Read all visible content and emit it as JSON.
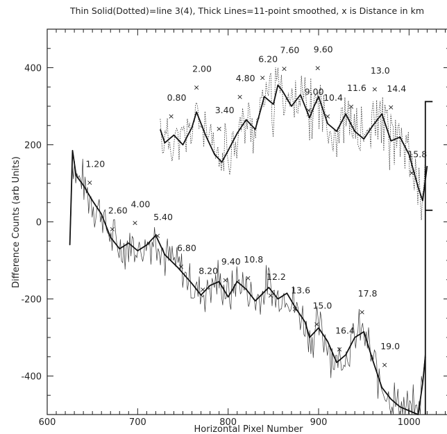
{
  "chart_data": {
    "type": "line",
    "title": "Thin Solid(Dotted)=line 3(4), Thick Lines=11-point smoothed, x is Distance in km",
    "xlabel": "Horizontal Pixel Number",
    "ylabel": "Difference Counts (arb Units)",
    "xlim": [
      600,
      1045
    ],
    "ylim": [
      -500,
      500
    ],
    "xticks": [
      600,
      700,
      800,
      900,
      1000
    ],
    "yticks": [
      -400,
      -200,
      0,
      200,
      400
    ],
    "series": [
      {
        "style": "dotted-thin-and-thick-smoothed",
        "smoothed": [
          [
            725,
            240
          ],
          [
            730,
            205
          ],
          [
            740,
            225
          ],
          [
            750,
            200
          ],
          [
            760,
            245
          ],
          [
            765,
            285
          ],
          [
            775,
            225
          ],
          [
            785,
            175
          ],
          [
            793,
            155
          ],
          [
            800,
            185
          ],
          [
            810,
            230
          ],
          [
            820,
            265
          ],
          [
            830,
            240
          ],
          [
            840,
            325
          ],
          [
            850,
            305
          ],
          [
            855,
            355
          ],
          [
            860,
            340
          ],
          [
            870,
            300
          ],
          [
            880,
            330
          ],
          [
            890,
            270
          ],
          [
            895,
            300
          ],
          [
            900,
            325
          ],
          [
            910,
            255
          ],
          [
            920,
            235
          ],
          [
            930,
            280
          ],
          [
            940,
            235
          ],
          [
            950,
            215
          ],
          [
            960,
            250
          ],
          [
            970,
            280
          ],
          [
            980,
            210
          ],
          [
            990,
            220
          ],
          [
            1000,
            175
          ],
          [
            1010,
            90
          ],
          [
            1015,
            55
          ],
          [
            1020,
            145
          ]
        ]
      },
      {
        "style": "solid-thin-and-thick-smoothed",
        "smoothed": [
          [
            625,
            -60
          ],
          [
            628,
            185
          ],
          [
            632,
            120
          ],
          [
            640,
            95
          ],
          [
            650,
            55
          ],
          [
            660,
            20
          ],
          [
            670,
            -40
          ],
          [
            680,
            -70
          ],
          [
            690,
            -55
          ],
          [
            700,
            -75
          ],
          [
            710,
            -60
          ],
          [
            720,
            -35
          ],
          [
            730,
            -85
          ],
          [
            745,
            -120
          ],
          [
            760,
            -160
          ],
          [
            770,
            -190
          ],
          [
            780,
            -165
          ],
          [
            790,
            -155
          ],
          [
            800,
            -195
          ],
          [
            810,
            -155
          ],
          [
            820,
            -175
          ],
          [
            830,
            -205
          ],
          [
            845,
            -170
          ],
          [
            855,
            -200
          ],
          [
            865,
            -185
          ],
          [
            875,
            -225
          ],
          [
            885,
            -260
          ],
          [
            890,
            -300
          ],
          [
            900,
            -275
          ],
          [
            910,
            -310
          ],
          [
            920,
            -365
          ],
          [
            930,
            -345
          ],
          [
            940,
            -300
          ],
          [
            950,
            -285
          ],
          [
            960,
            -360
          ],
          [
            970,
            -430
          ],
          [
            980,
            -460
          ],
          [
            990,
            -480
          ],
          [
            1000,
            -490
          ],
          [
            1010,
            -500
          ],
          [
            1015,
            -420
          ],
          [
            1018,
            -350
          ]
        ]
      }
    ],
    "step_line": {
      "segments": [
        [
          [
            1018,
            -500
          ],
          [
            1018,
            312
          ],
          [
            1026,
            312
          ]
        ],
        [
          [
            1018,
            30
          ],
          [
            1026,
            30
          ]
        ]
      ]
    },
    "distance_markers": [
      {
        "label": "0.80",
        "x": 737,
        "y": 275
      },
      {
        "label": "2.00",
        "x": 765,
        "y": 350
      },
      {
        "label": "3.40",
        "x": 790,
        "y": 242
      },
      {
        "label": "4.80",
        "x": 813,
        "y": 325
      },
      {
        "label": "6.20",
        "x": 838,
        "y": 375
      },
      {
        "label": "7.60",
        "x": 862,
        "y": 398
      },
      {
        "label": "9.00",
        "x": 889,
        "y": 290
      },
      {
        "label": "9.60",
        "x": 899,
        "y": 400
      },
      {
        "label": "10.4",
        "x": 910,
        "y": 275
      },
      {
        "label": "11.6",
        "x": 936,
        "y": 300
      },
      {
        "label": "13.0",
        "x": 962,
        "y": 345
      },
      {
        "label": "14.4",
        "x": 980,
        "y": 298
      },
      {
        "label": "15.8",
        "x": 1003,
        "y": 128
      },
      {
        "label": "1.20",
        "x": 647,
        "y": 103
      },
      {
        "label": "2.60",
        "x": 672,
        "y": -18
      },
      {
        "label": "4.00",
        "x": 697,
        "y": -2
      },
      {
        "label": "5.40",
        "x": 722,
        "y": -35
      },
      {
        "label": "6.80",
        "x": 748,
        "y": -115
      },
      {
        "label": "8.20",
        "x": 772,
        "y": -175
      },
      {
        "label": "9.40",
        "x": 797,
        "y": -150
      },
      {
        "label": "10.8",
        "x": 822,
        "y": -145
      },
      {
        "label": "12.2",
        "x": 847,
        "y": -190
      },
      {
        "label": "13.6",
        "x": 874,
        "y": -225
      },
      {
        "label": "15.0",
        "x": 898,
        "y": -265
      },
      {
        "label": "16.4",
        "x": 923,
        "y": -330
      },
      {
        "label": "17.8",
        "x": 948,
        "y": -233
      },
      {
        "label": "19.0",
        "x": 973,
        "y": -370
      }
    ]
  }
}
